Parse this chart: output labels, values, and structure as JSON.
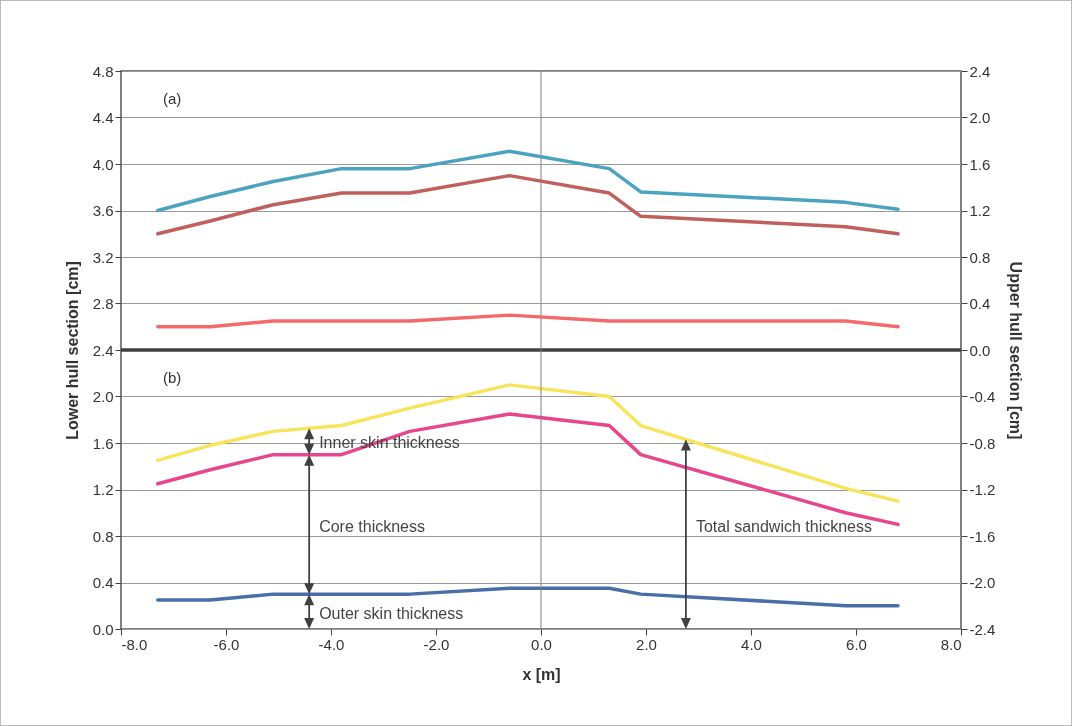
{
  "chart_data": {
    "type": "line",
    "xlabel": "x [m]",
    "ylabel": "Lower hull section [cm]",
    "y2label": "Upper hull section [cm]",
    "x": [
      -7.3,
      -6.3,
      -5.1,
      -3.8,
      -2.5,
      -0.6,
      1.3,
      1.9,
      5.8,
      6.8
    ],
    "xlim": [
      -8,
      8
    ],
    "xticks": [
      {
        "value": -8,
        "label": "-8.0"
      },
      {
        "value": -6,
        "label": "-6.0"
      },
      {
        "value": -4,
        "label": "-4.0"
      },
      {
        "value": -2,
        "label": "-2.0"
      },
      {
        "value": 0,
        "label": "0.0"
      },
      {
        "value": 2,
        "label": "2.0"
      },
      {
        "value": 4,
        "label": "4.0"
      },
      {
        "value": 6,
        "label": "6.0"
      },
      {
        "value": 8,
        "label": "8.0"
      }
    ],
    "ylim": [
      0,
      4.8
    ],
    "yticks": [
      {
        "value": 0,
        "label": "0.0"
      },
      0.4,
      0.8,
      1.2,
      1.6,
      {
        "value": 2,
        "label": "2.0"
      },
      2.4,
      2.8,
      3.2,
      3.6,
      {
        "value": 4,
        "label": "4.0"
      },
      4.4,
      4.8
    ],
    "y2lim": [
      -2.4,
      2.4
    ],
    "y2ticks": [
      -2.4,
      {
        "value": -2,
        "label": "-2.0"
      },
      -1.6,
      -1.2,
      -0.8,
      -0.4,
      {
        "value": 0,
        "label": "0.0"
      },
      0.4,
      0.8,
      1.2,
      1.6,
      {
        "value": 2,
        "label": "2.0"
      },
      2.4
    ],
    "grid": "y",
    "legend": false,
    "line_style": "solid",
    "marker": "none",
    "series": [
      {
        "color": "#4a6fa8",
        "values": [
          0.25,
          0.25,
          0.3,
          0.3,
          0.3,
          0.35,
          0.35,
          0.3,
          0.2,
          0.2
        ]
      },
      {
        "color": "#e8468c",
        "values": [
          1.25,
          1.37,
          1.5,
          1.5,
          1.7,
          1.85,
          1.75,
          1.5,
          1.0,
          0.9
        ]
      },
      {
        "color": "#f8e45c",
        "values": [
          1.45,
          1.58,
          1.7,
          1.75,
          1.9,
          2.1,
          2.0,
          1.75,
          1.21,
          1.1
        ]
      },
      {
        "color": "#f46a6a",
        "axis": "y2",
        "values": [
          0.2,
          0.2,
          0.25,
          0.25,
          0.25,
          0.3,
          0.25,
          0.25,
          0.25,
          0.2
        ]
      },
      {
        "color": "#c0605c",
        "axis": "y2",
        "values": [
          1.0,
          1.11,
          1.25,
          1.35,
          1.35,
          1.5,
          1.35,
          1.15,
          1.06,
          1.0
        ]
      },
      {
        "color": "#4ba3bf",
        "axis": "y2",
        "values": [
          1.2,
          1.32,
          1.45,
          1.56,
          1.56,
          1.71,
          1.56,
          1.36,
          1.27,
          1.21
        ]
      }
    ],
    "ref_lines": [
      {
        "axis": "y",
        "value": 2.4,
        "color": "#404040"
      },
      {
        "axis": "x",
        "value": 0,
        "color": "#808080"
      }
    ],
    "annotations": [
      "(a)",
      "(b)",
      "Inner skin thickness",
      "Core thickness",
      "Outer skin thickness",
      "Total sandwich thickness"
    ]
  }
}
